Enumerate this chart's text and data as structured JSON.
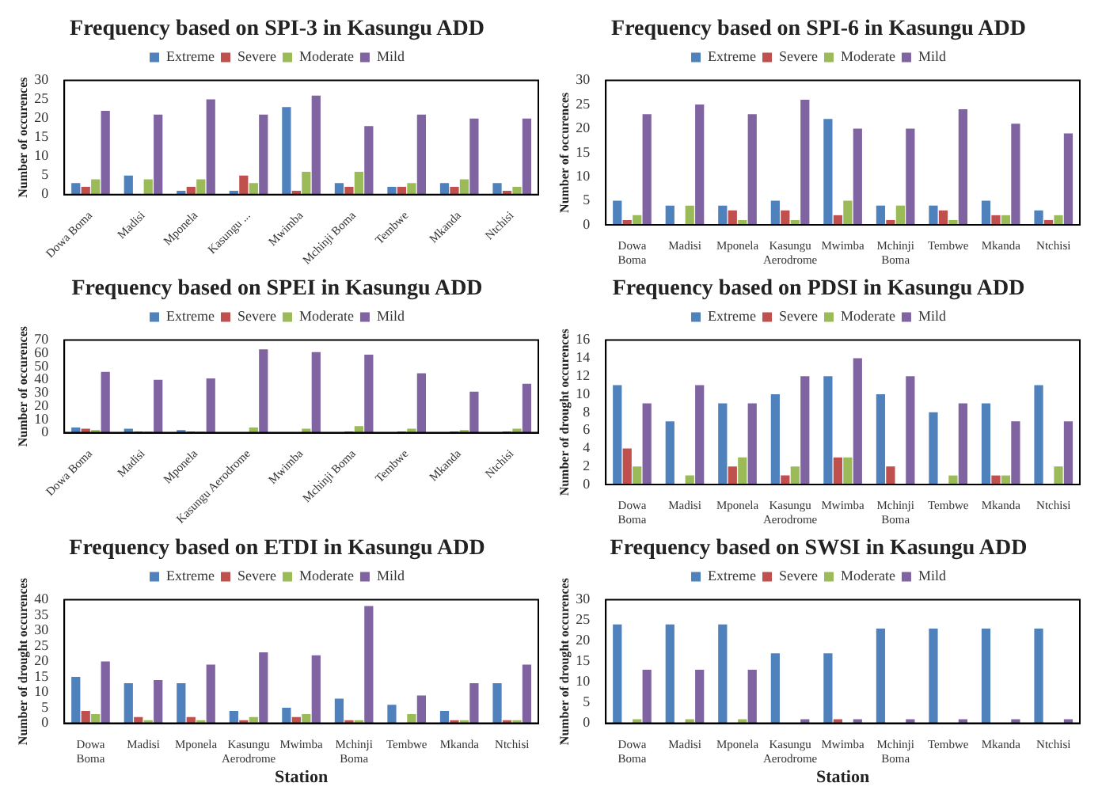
{
  "chart_data": [
    {
      "type": "bar",
      "title": "Frequency based on SPI-3 in Kasungu ADD",
      "ylabel": "Number of occurences",
      "categories": [
        "Dowa Boma",
        "Madisi",
        "Mponela",
        "Kasungu ...",
        "Mwimba",
        "Mchinji Boma",
        "Tembwe",
        "Mkanda",
        "Ntchisi"
      ],
      "ylim": [
        0,
        30
      ],
      "yticks": [
        0,
        5,
        10,
        15,
        20,
        25,
        30
      ],
      "grid": false,
      "legend": "top",
      "series": [
        {
          "name": "Extreme",
          "color": "#4f81bd",
          "values": [
            3,
            5,
            1,
            1,
            23,
            3,
            2,
            3,
            3
          ]
        },
        {
          "name": "Severe",
          "color": "#c0504d",
          "values": [
            2,
            0,
            2,
            5,
            1,
            2,
            2,
            2,
            1
          ]
        },
        {
          "name": "Moderate",
          "color": "#9bbb59",
          "values": [
            4,
            4,
            4,
            3,
            6,
            6,
            3,
            4,
            2
          ]
        },
        {
          "name": "Mild",
          "color": "#8064a2",
          "values": [
            22,
            21,
            25,
            21,
            26,
            18,
            21,
            20,
            20
          ]
        }
      ]
    },
    {
      "type": "bar",
      "title": "Frequency based on SPI-6 in Kasungu ADD",
      "ylabel": "Number of occurences",
      "categories": [
        "Dowa Boma",
        "Madisi",
        "Mponela",
        "Kasungu Aerodrome",
        "Mwimba",
        "Mchinji Boma",
        "Tembwe",
        "Mkanda",
        "Ntchisi"
      ],
      "ylim": [
        0,
        30
      ],
      "yticks": [
        0,
        5,
        10,
        15,
        20,
        25,
        30
      ],
      "grid": false,
      "legend": "top",
      "series": [
        {
          "name": "Extreme",
          "color": "#4f81bd",
          "values": [
            5,
            4,
            4,
            5,
            22,
            4,
            4,
            5,
            3
          ]
        },
        {
          "name": "Severe",
          "color": "#c0504d",
          "values": [
            1,
            0,
            3,
            3,
            2,
            1,
            3,
            2,
            1
          ]
        },
        {
          "name": "Moderate",
          "color": "#9bbb59",
          "values": [
            2,
            4,
            1,
            1,
            5,
            4,
            1,
            2,
            2
          ]
        },
        {
          "name": "Mild",
          "color": "#8064a2",
          "values": [
            23,
            25,
            23,
            26,
            20,
            20,
            24,
            21,
            19
          ]
        }
      ]
    },
    {
      "type": "bar",
      "title": "Frequency based on SPEI in Kasungu ADD",
      "ylabel": "Number of occurences",
      "categories": [
        "Dowa Boma",
        "Madisi",
        "Mponela",
        "Kasungu Aerodrome",
        "Mwimba",
        "Mchinji Boma",
        "Tembwe",
        "Mkanda",
        "Ntchisi"
      ],
      "ylim": [
        0,
        70
      ],
      "yticks": [
        0,
        10,
        20,
        30,
        40,
        50,
        60,
        70
      ],
      "grid": false,
      "legend": "top",
      "series": [
        {
          "name": "Extreme",
          "color": "#4f81bd",
          "values": [
            4,
            3,
            2,
            0,
            0,
            0,
            0,
            0,
            0
          ]
        },
        {
          "name": "Severe",
          "color": "#c0504d",
          "values": [
            3,
            1,
            1,
            0,
            0,
            1,
            1,
            1,
            1
          ]
        },
        {
          "name": "Moderate",
          "color": "#9bbb59",
          "values": [
            2,
            1,
            1,
            4,
            3,
            5,
            3,
            2,
            3
          ]
        },
        {
          "name": "Mild",
          "color": "#8064a2",
          "values": [
            46,
            40,
            41,
            63,
            61,
            59,
            45,
            31,
            37
          ]
        }
      ]
    },
    {
      "type": "bar",
      "title": "Frequency based on PDSI in Kasungu ADD",
      "ylabel": "Number of drought occurences",
      "categories": [
        "Dowa Boma",
        "Madisi",
        "Mponela",
        "Kasungu Aerodrome",
        "Mwimba",
        "Mchinji Boma",
        "Tembwe",
        "Mkanda",
        "Ntchisi"
      ],
      "ylim": [
        0,
        16
      ],
      "yticks": [
        0,
        2,
        4,
        6,
        8,
        10,
        12,
        14,
        16
      ],
      "grid": false,
      "legend": "top",
      "series": [
        {
          "name": "Extreme",
          "color": "#4f81bd",
          "values": [
            11,
            7,
            9,
            10,
            12,
            10,
            8,
            9,
            11
          ]
        },
        {
          "name": "Severe",
          "color": "#c0504d",
          "values": [
            4,
            0,
            2,
            1,
            3,
            2,
            0,
            1,
            0
          ]
        },
        {
          "name": "Moderate",
          "color": "#9bbb59",
          "values": [
            2,
            1,
            3,
            2,
            3,
            0,
            1,
            1,
            2
          ]
        },
        {
          "name": "Mild",
          "color": "#8064a2",
          "values": [
            9,
            11,
            9,
            12,
            14,
            12,
            9,
            7,
            7
          ]
        }
      ]
    },
    {
      "type": "bar",
      "title": "Frequency based on ETDI in Kasungu ADD",
      "xlabel": "Station",
      "ylabel": "Number of drought occurences",
      "categories": [
        "Dowa Boma",
        "Madisi",
        "Mponela",
        "Kasungu Aerodrome",
        "Mwimba",
        "Mchinji Boma",
        "Tembwe",
        "Mkanda",
        "Ntchisi"
      ],
      "ylim": [
        0,
        40
      ],
      "yticks": [
        0,
        5,
        10,
        15,
        20,
        25,
        30,
        35,
        40
      ],
      "grid": false,
      "legend": "top",
      "series": [
        {
          "name": "Extreme",
          "color": "#4f81bd",
          "values": [
            15,
            13,
            13,
            4,
            5,
            8,
            6,
            4,
            13
          ]
        },
        {
          "name": "Severe",
          "color": "#c0504d",
          "values": [
            4,
            2,
            2,
            1,
            2,
            1,
            0,
            1,
            1
          ]
        },
        {
          "name": "Moderate",
          "color": "#9bbb59",
          "values": [
            3,
            1,
            1,
            2,
            3,
            1,
            3,
            1,
            1
          ]
        },
        {
          "name": "Mild",
          "color": "#8064a2",
          "values": [
            20,
            14,
            19,
            23,
            22,
            38,
            9,
            13,
            19
          ]
        }
      ]
    },
    {
      "type": "bar",
      "title": "Frequency based on SWSI in Kasungu ADD",
      "xlabel": "Station",
      "ylabel": "Number of drought occurences",
      "categories": [
        "Dowa Boma",
        "Madisi",
        "Mponela",
        "Kasungu Aerodrome",
        "Mwimba",
        "Mchinji Boma",
        "Tembwe",
        "Mkanda",
        "Ntchisi"
      ],
      "ylim": [
        0,
        30
      ],
      "yticks": [
        0,
        5,
        10,
        15,
        20,
        25,
        30
      ],
      "grid": false,
      "legend": "top",
      "series": [
        {
          "name": "Extreme",
          "color": "#4f81bd",
          "values": [
            24,
            24,
            24,
            17,
            17,
            23,
            23,
            23,
            23
          ]
        },
        {
          "name": "Severe",
          "color": "#c0504d",
          "values": [
            0,
            0,
            0,
            0,
            1,
            0,
            0,
            0,
            0
          ]
        },
        {
          "name": "Moderate",
          "color": "#9bbb59",
          "values": [
            1,
            1,
            1,
            0,
            0,
            0,
            0,
            0,
            0
          ]
        },
        {
          "name": "Mild",
          "color": "#8064a2",
          "values": [
            13,
            13,
            13,
            1,
            1,
            1,
            1,
            1,
            1
          ]
        }
      ]
    }
  ]
}
